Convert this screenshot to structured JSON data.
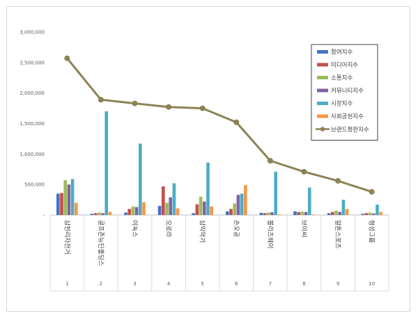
{
  "chart_data": {
    "type": "bar",
    "title": "",
    "xlabel": "",
    "ylabel": "",
    "ylim": [
      0,
      3000000
    ],
    "y_ticks": [
      0,
      500000,
      1000000,
      1500000,
      2000000,
      2500000,
      3000000
    ],
    "y_tick_labels": [
      "-",
      "500,000",
      "1,000,000",
      "1,500,000",
      "2,000,000",
      "2,500,000",
      "3,000,000"
    ],
    "categories": [
      "삼천리자전거",
      "골프존뉴딘홀딩스",
      "이녹스",
      "오로라",
      "삼익악기",
      "손오공",
      "볼리츠웨이",
      "브이씨",
      "알톤스포츠",
      "형성그룹"
    ],
    "ranks": [
      "1",
      "2",
      "3",
      "4",
      "5",
      "6",
      "7",
      "8",
      "9",
      "10"
    ],
    "series": [
      {
        "name": "참여지수",
        "color": "#4472C4",
        "values": [
          350000,
          20000,
          40000,
          150000,
          30000,
          60000,
          35000,
          60000,
          30000,
          20000
        ]
      },
      {
        "name": "미디어지수",
        "color": "#C0504D",
        "values": [
          360000,
          30000,
          100000,
          470000,
          175000,
          100000,
          30000,
          50000,
          50000,
          30000
        ]
      },
      {
        "name": "소통지수",
        "color": "#9BBB59",
        "values": [
          570000,
          40000,
          140000,
          200000,
          300000,
          190000,
          40000,
          55000,
          70000,
          40000
        ]
      },
      {
        "name": "커뮤니티지수",
        "color": "#8064A2",
        "values": [
          500000,
          30000,
          130000,
          290000,
          220000,
          330000,
          45000,
          50000,
          50000,
          25000
        ]
      },
      {
        "name": "시장지수",
        "color": "#4BACC6",
        "values": [
          590000,
          1700000,
          1170000,
          520000,
          860000,
          350000,
          710000,
          450000,
          250000,
          170000
        ]
      },
      {
        "name": "사회공헌지수",
        "color": "#F79646",
        "values": [
          200000,
          50000,
          210000,
          110000,
          140000,
          490000,
          10000,
          10000,
          100000,
          50000
        ]
      }
    ],
    "line_series": {
      "name": "브랜드평판지수",
      "color": "#8B8255",
      "values": [
        2570000,
        1890000,
        1830000,
        1770000,
        1750000,
        1520000,
        890000,
        710000,
        560000,
        380000
      ]
    },
    "legend_position": "top-right",
    "grid": false
  }
}
